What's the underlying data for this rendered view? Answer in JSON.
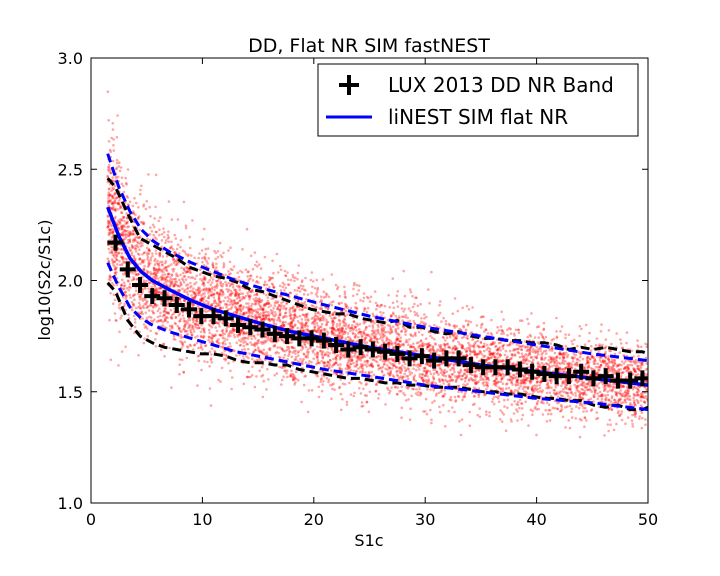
{
  "chart_data": {
    "type": "scatter",
    "title": "DD, Flat NR SIM fastNEST",
    "xlabel": "S1c",
    "ylabel": "log10(S2c/S1c)",
    "xlim": [
      0,
      50
    ],
    "ylim": [
      1.0,
      3.0
    ],
    "xticks": [
      "0",
      "10",
      "20",
      "30",
      "40",
      "50"
    ],
    "yticks": [
      "1.0",
      "1.5",
      "2.0",
      "2.5",
      "3.0"
    ],
    "grid": false,
    "legend_position": "top-right",
    "colors": {
      "scatter": "#ff0000",
      "sim_line": "#0000ff",
      "lux_band": "#000000",
      "lux_markers": "#000000"
    },
    "series": [
      {
        "name": "LUX 2013 DD NR Band",
        "kind": "markers",
        "x": [
          2.2,
          3.3,
          4.4,
          5.5,
          6.6,
          7.7,
          8.8,
          9.9,
          11.0,
          12.1,
          13.2,
          14.3,
          15.4,
          16.5,
          17.6,
          18.7,
          19.8,
          20.9,
          22.0,
          23.1,
          24.2,
          25.3,
          26.4,
          27.5,
          28.6,
          29.7,
          30.8,
          31.9,
          33.0,
          34.1,
          35.2,
          36.3,
          37.4,
          38.5,
          39.6,
          40.7,
          41.8,
          42.9,
          44.0,
          45.1,
          46.2,
          47.3,
          48.4,
          49.5
        ],
        "y": [
          2.17,
          2.05,
          1.98,
          1.93,
          1.92,
          1.89,
          1.87,
          1.84,
          1.84,
          1.83,
          1.8,
          1.79,
          1.78,
          1.76,
          1.75,
          1.74,
          1.74,
          1.73,
          1.71,
          1.69,
          1.7,
          1.69,
          1.68,
          1.67,
          1.65,
          1.66,
          1.64,
          1.65,
          1.65,
          1.62,
          1.61,
          1.61,
          1.61,
          1.6,
          1.59,
          1.58,
          1.57,
          1.57,
          1.59,
          1.56,
          1.57,
          1.55,
          1.55,
          1.56
        ]
      },
      {
        "name": "",
        "kind": "lux-band-upper-dashed",
        "x": [
          1.5,
          2.2,
          3.3,
          4.4,
          5.5,
          6.6,
          7.7,
          8.8,
          9.9,
          11.0,
          12.1,
          13.2,
          14.3,
          15.4,
          16.5,
          17.6,
          18.7,
          19.8,
          20.9,
          22.0,
          23.1,
          24.2,
          25.3,
          26.4,
          27.5,
          28.6,
          29.7,
          30.8,
          31.9,
          33.0,
          34.1,
          35.2,
          36.3,
          37.4,
          38.5,
          39.6,
          40.7,
          41.8,
          42.9,
          44.0,
          45.1,
          46.2,
          47.3,
          48.4,
          49.5,
          50.0
        ],
        "y": [
          2.46,
          2.42,
          2.3,
          2.19,
          2.16,
          2.13,
          2.1,
          2.06,
          2.04,
          2.02,
          2.01,
          1.99,
          1.96,
          1.95,
          1.93,
          1.91,
          1.89,
          1.87,
          1.86,
          1.85,
          1.85,
          1.83,
          1.82,
          1.81,
          1.82,
          1.79,
          1.79,
          1.77,
          1.76,
          1.77,
          1.75,
          1.74,
          1.74,
          1.73,
          1.73,
          1.72,
          1.72,
          1.71,
          1.69,
          1.7,
          1.69,
          1.7,
          1.69,
          1.68,
          1.68,
          1.67
        ]
      },
      {
        "name": "",
        "kind": "lux-band-lower-dashed",
        "x": [
          1.5,
          2.2,
          3.3,
          4.4,
          5.5,
          6.6,
          7.7,
          8.8,
          9.9,
          11.0,
          12.1,
          13.2,
          14.3,
          15.4,
          16.5,
          17.6,
          18.7,
          19.8,
          20.9,
          22.0,
          23.1,
          24.2,
          25.3,
          26.4,
          27.5,
          28.6,
          29.7,
          30.8,
          31.9,
          33.0,
          34.1,
          35.2,
          36.3,
          37.4,
          38.5,
          39.6,
          40.7,
          41.8,
          42.9,
          44.0,
          45.1,
          46.2,
          47.3,
          48.4,
          49.5,
          50.0
        ],
        "y": [
          1.99,
          1.95,
          1.82,
          1.75,
          1.72,
          1.7,
          1.69,
          1.68,
          1.67,
          1.67,
          1.66,
          1.64,
          1.63,
          1.63,
          1.62,
          1.62,
          1.6,
          1.59,
          1.58,
          1.57,
          1.56,
          1.56,
          1.55,
          1.54,
          1.54,
          1.53,
          1.53,
          1.52,
          1.52,
          1.52,
          1.51,
          1.5,
          1.5,
          1.49,
          1.49,
          1.48,
          1.47,
          1.47,
          1.46,
          1.46,
          1.44,
          1.43,
          1.44,
          1.42,
          1.42,
          1.43
        ]
      },
      {
        "name": "liNEST SIM flat NR",
        "kind": "line",
        "x": [
          1.5,
          2.5,
          3.5,
          4.5,
          5.5,
          7,
          9,
          11,
          13,
          15,
          18,
          21,
          25,
          30,
          35,
          40,
          45,
          50
        ],
        "y": [
          2.33,
          2.2,
          2.1,
          2.04,
          2.0,
          1.96,
          1.91,
          1.87,
          1.84,
          1.81,
          1.77,
          1.74,
          1.7,
          1.66,
          1.62,
          1.59,
          1.56,
          1.53
        ]
      },
      {
        "name": "",
        "kind": "sim-band-upper-dashed",
        "x": [
          1.5,
          2.5,
          3.5,
          4.5,
          5.5,
          7,
          9,
          11,
          13,
          15,
          18,
          21,
          25,
          30,
          35,
          40,
          45,
          50
        ],
        "y": [
          2.57,
          2.42,
          2.31,
          2.23,
          2.18,
          2.13,
          2.08,
          2.04,
          2.0,
          1.97,
          1.93,
          1.89,
          1.84,
          1.79,
          1.75,
          1.71,
          1.67,
          1.64
        ]
      },
      {
        "name": "",
        "kind": "sim-band-lower-dashed",
        "x": [
          1.5,
          2.5,
          3.5,
          4.5,
          5.5,
          7,
          9,
          11,
          13,
          15,
          18,
          21,
          25,
          30,
          35,
          40,
          45,
          50
        ],
        "y": [
          2.08,
          1.97,
          1.88,
          1.83,
          1.8,
          1.77,
          1.74,
          1.71,
          1.68,
          1.66,
          1.63,
          1.6,
          1.57,
          1.53,
          1.5,
          1.47,
          1.45,
          1.42
        ]
      }
    ],
    "scatter_cloud": {
      "kind": "dense-scatter",
      "x_range": [
        1.5,
        50
      ],
      "center_curve": "follows liNEST SIM flat NR",
      "spread_curve": "follows the SIM band half-width"
    }
  }
}
